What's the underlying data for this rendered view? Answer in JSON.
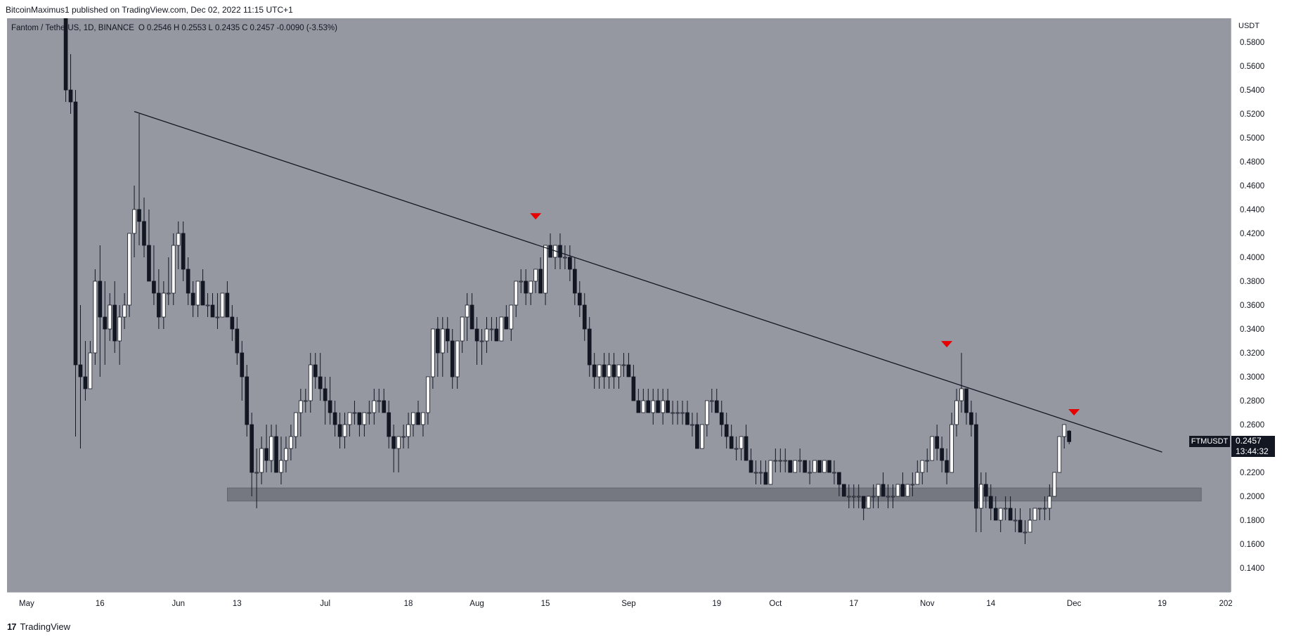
{
  "header": {
    "published_line": "BitcoinMaximus1 published on TradingView.com, Dec 02, 2022 11:15 UTC+1"
  },
  "legend": {
    "symbol": "Fantom / TetherUS, 1D, BINANCE",
    "open_label": "O",
    "open": "0.2546",
    "high_label": "H",
    "high": "0.2553",
    "low_label": "L",
    "low": "0.2435",
    "close_label": "C",
    "close": "0.2457",
    "change": "-0.0090 (-3.53%)"
  },
  "price_tag": {
    "symbol": "FTMUSDT",
    "price": "0.2457",
    "countdown": "13:44:32"
  },
  "footer": {
    "logo_text": "17",
    "brand": "TradingView"
  },
  "colors": {
    "background": "#9598a1",
    "up_candle": "#ffffff",
    "down_candle": "#131722",
    "trendline": "#131722",
    "support_zone": "#6b6e76",
    "marker": "#e60000"
  },
  "chart_data": {
    "type": "candlestick",
    "y_axis_title": "USDT",
    "ylim": [
      0.12,
      0.6
    ],
    "y_ticks": [
      "0.1400",
      "0.1600",
      "0.1800",
      "0.2000",
      "0.2200",
      "0.2400",
      "0.2600",
      "0.2800",
      "0.3000",
      "0.3200",
      "0.3400",
      "0.3600",
      "0.3800",
      "0.4000",
      "0.4200",
      "0.4400",
      "0.4600",
      "0.4800",
      "0.5000",
      "0.5200",
      "0.5400",
      "0.5600",
      "0.5800"
    ],
    "x_ticks": [
      {
        "label": "May",
        "date": "2022-05-01"
      },
      {
        "label": "16",
        "date": "2022-05-16"
      },
      {
        "label": "Jun",
        "date": "2022-06-01"
      },
      {
        "label": "13",
        "date": "2022-06-13"
      },
      {
        "label": "Jul",
        "date": "2022-07-01"
      },
      {
        "label": "18",
        "date": "2022-07-18"
      },
      {
        "label": "Aug",
        "date": "2022-08-01"
      },
      {
        "label": "15",
        "date": "2022-08-15"
      },
      {
        "label": "Sep",
        "date": "2022-09-01"
      },
      {
        "label": "19",
        "date": "2022-09-19"
      },
      {
        "label": "Oct",
        "date": "2022-10-01"
      },
      {
        "label": "17",
        "date": "2022-10-17"
      },
      {
        "label": "Nov",
        "date": "2022-11-01"
      },
      {
        "label": "14",
        "date": "2022-11-14"
      },
      {
        "label": "Dec",
        "date": "2022-12-01"
      },
      {
        "label": "19",
        "date": "2022-12-19"
      },
      {
        "label": "202",
        "date": "2023-01-01"
      }
    ],
    "xlim": [
      "2022-04-27",
      "2023-01-02"
    ],
    "trendline": {
      "start": [
        "2022-05-23",
        0.522
      ],
      "end": [
        "2022-12-19",
        0.237
      ]
    },
    "support_zone": {
      "start": "2022-06-11",
      "end": "2022-12-27",
      "low": 0.196,
      "high": 0.207
    },
    "markers": [
      {
        "date": "2022-08-13",
        "price": 0.434
      },
      {
        "date": "2022-11-05",
        "price": 0.327
      },
      {
        "date": "2022-12-01",
        "price": 0.27
      }
    ],
    "candle_key": [
      "open",
      "high",
      "low",
      "close"
    ],
    "start_date": "2022-05-09",
    "candles": [
      [
        0.6,
        0.62,
        0.53,
        0.54
      ],
      [
        0.54,
        0.57,
        0.52,
        0.53
      ],
      [
        0.53,
        0.54,
        0.25,
        0.31
      ],
      [
        0.31,
        0.36,
        0.24,
        0.3
      ],
      [
        0.3,
        0.33,
        0.28,
        0.29
      ],
      [
        0.29,
        0.33,
        0.29,
        0.32
      ],
      [
        0.32,
        0.39,
        0.31,
        0.38
      ],
      [
        0.38,
        0.41,
        0.3,
        0.35
      ],
      [
        0.35,
        0.38,
        0.31,
        0.34
      ],
      [
        0.34,
        0.37,
        0.33,
        0.36
      ],
      [
        0.36,
        0.38,
        0.32,
        0.33
      ],
      [
        0.33,
        0.36,
        0.31,
        0.35
      ],
      [
        0.35,
        0.37,
        0.34,
        0.36
      ],
      [
        0.36,
        0.42,
        0.35,
        0.42
      ],
      [
        0.42,
        0.46,
        0.4,
        0.44
      ],
      [
        0.44,
        0.52,
        0.41,
        0.43
      ],
      [
        0.43,
        0.45,
        0.4,
        0.41
      ],
      [
        0.41,
        0.44,
        0.38,
        0.38
      ],
      [
        0.38,
        0.41,
        0.36,
        0.37
      ],
      [
        0.37,
        0.39,
        0.34,
        0.35
      ],
      [
        0.35,
        0.38,
        0.34,
        0.37
      ],
      [
        0.37,
        0.4,
        0.36,
        0.37
      ],
      [
        0.37,
        0.42,
        0.36,
        0.41
      ],
      [
        0.41,
        0.43,
        0.39,
        0.42
      ],
      [
        0.42,
        0.43,
        0.38,
        0.39
      ],
      [
        0.39,
        0.4,
        0.36,
        0.37
      ],
      [
        0.37,
        0.38,
        0.35,
        0.36
      ],
      [
        0.36,
        0.38,
        0.35,
        0.38
      ],
      [
        0.38,
        0.39,
        0.36,
        0.36
      ],
      [
        0.36,
        0.37,
        0.35,
        0.36
      ],
      [
        0.36,
        0.37,
        0.35,
        0.35
      ],
      [
        0.35,
        0.37,
        0.34,
        0.35
      ],
      [
        0.35,
        0.37,
        0.35,
        0.37
      ],
      [
        0.37,
        0.38,
        0.35,
        0.35
      ],
      [
        0.35,
        0.36,
        0.33,
        0.34
      ],
      [
        0.34,
        0.35,
        0.31,
        0.32
      ],
      [
        0.32,
        0.33,
        0.28,
        0.3
      ],
      [
        0.3,
        0.31,
        0.25,
        0.26
      ],
      [
        0.26,
        0.27,
        0.2,
        0.22
      ],
      [
        0.22,
        0.24,
        0.19,
        0.22
      ],
      [
        0.22,
        0.25,
        0.21,
        0.24
      ],
      [
        0.24,
        0.26,
        0.22,
        0.23
      ],
      [
        0.23,
        0.26,
        0.22,
        0.25
      ],
      [
        0.25,
        0.26,
        0.22,
        0.22
      ],
      [
        0.22,
        0.25,
        0.21,
        0.23
      ],
      [
        0.23,
        0.25,
        0.22,
        0.24
      ],
      [
        0.24,
        0.26,
        0.23,
        0.25
      ],
      [
        0.25,
        0.27,
        0.24,
        0.27
      ],
      [
        0.27,
        0.29,
        0.25,
        0.28
      ],
      [
        0.28,
        0.29,
        0.27,
        0.28
      ],
      [
        0.28,
        0.32,
        0.27,
        0.31
      ],
      [
        0.31,
        0.32,
        0.29,
        0.3
      ],
      [
        0.3,
        0.32,
        0.28,
        0.29
      ],
      [
        0.29,
        0.3,
        0.26,
        0.28
      ],
      [
        0.28,
        0.3,
        0.26,
        0.27
      ],
      [
        0.27,
        0.28,
        0.25,
        0.26
      ],
      [
        0.26,
        0.27,
        0.24,
        0.25
      ],
      [
        0.25,
        0.27,
        0.24,
        0.26
      ],
      [
        0.26,
        0.27,
        0.25,
        0.27
      ],
      [
        0.27,
        0.28,
        0.26,
        0.27
      ],
      [
        0.27,
        0.27,
        0.25,
        0.26
      ],
      [
        0.26,
        0.27,
        0.25,
        0.27
      ],
      [
        0.27,
        0.28,
        0.26,
        0.27
      ],
      [
        0.27,
        0.29,
        0.26,
        0.28
      ],
      [
        0.28,
        0.29,
        0.27,
        0.28
      ],
      [
        0.28,
        0.29,
        0.27,
        0.27
      ],
      [
        0.27,
        0.28,
        0.24,
        0.25
      ],
      [
        0.25,
        0.26,
        0.22,
        0.24
      ],
      [
        0.24,
        0.25,
        0.22,
        0.25
      ],
      [
        0.25,
        0.26,
        0.24,
        0.25
      ],
      [
        0.25,
        0.27,
        0.24,
        0.26
      ],
      [
        0.26,
        0.27,
        0.25,
        0.27
      ],
      [
        0.27,
        0.28,
        0.26,
        0.26
      ],
      [
        0.26,
        0.27,
        0.25,
        0.27
      ],
      [
        0.27,
        0.3,
        0.26,
        0.3
      ],
      [
        0.3,
        0.34,
        0.29,
        0.34
      ],
      [
        0.34,
        0.35,
        0.3,
        0.32
      ],
      [
        0.32,
        0.35,
        0.3,
        0.34
      ],
      [
        0.34,
        0.35,
        0.32,
        0.33
      ],
      [
        0.33,
        0.34,
        0.29,
        0.3
      ],
      [
        0.3,
        0.33,
        0.29,
        0.33
      ],
      [
        0.33,
        0.35,
        0.32,
        0.35
      ],
      [
        0.35,
        0.37,
        0.33,
        0.36
      ],
      [
        0.36,
        0.37,
        0.34,
        0.34
      ],
      [
        0.34,
        0.35,
        0.31,
        0.33
      ],
      [
        0.33,
        0.34,
        0.31,
        0.33
      ],
      [
        0.33,
        0.35,
        0.32,
        0.34
      ],
      [
        0.34,
        0.35,
        0.33,
        0.34
      ],
      [
        0.34,
        0.35,
        0.33,
        0.33
      ],
      [
        0.33,
        0.35,
        0.33,
        0.35
      ],
      [
        0.35,
        0.36,
        0.34,
        0.34
      ],
      [
        0.34,
        0.36,
        0.33,
        0.36
      ],
      [
        0.36,
        0.38,
        0.35,
        0.38
      ],
      [
        0.38,
        0.39,
        0.37,
        0.38
      ],
      [
        0.38,
        0.39,
        0.36,
        0.37
      ],
      [
        0.37,
        0.38,
        0.36,
        0.38
      ],
      [
        0.38,
        0.39,
        0.37,
        0.39
      ],
      [
        0.39,
        0.4,
        0.37,
        0.37
      ],
      [
        0.37,
        0.41,
        0.36,
        0.41
      ],
      [
        0.41,
        0.42,
        0.4,
        0.4
      ],
      [
        0.4,
        0.41,
        0.39,
        0.41
      ],
      [
        0.41,
        0.42,
        0.39,
        0.4
      ],
      [
        0.4,
        0.41,
        0.39,
        0.4
      ],
      [
        0.4,
        0.41,
        0.38,
        0.39
      ],
      [
        0.39,
        0.4,
        0.36,
        0.37
      ],
      [
        0.37,
        0.38,
        0.35,
        0.36
      ],
      [
        0.36,
        0.37,
        0.33,
        0.34
      ],
      [
        0.34,
        0.35,
        0.3,
        0.31
      ],
      [
        0.31,
        0.32,
        0.29,
        0.3
      ],
      [
        0.3,
        0.31,
        0.29,
        0.31
      ],
      [
        0.31,
        0.32,
        0.29,
        0.3
      ],
      [
        0.3,
        0.32,
        0.29,
        0.31
      ],
      [
        0.31,
        0.32,
        0.29,
        0.3
      ],
      [
        0.3,
        0.31,
        0.29,
        0.31
      ],
      [
        0.31,
        0.32,
        0.3,
        0.31
      ],
      [
        0.31,
        0.32,
        0.3,
        0.3
      ],
      [
        0.3,
        0.31,
        0.28,
        0.28
      ],
      [
        0.28,
        0.29,
        0.27,
        0.27
      ],
      [
        0.27,
        0.29,
        0.27,
        0.28
      ],
      [
        0.28,
        0.29,
        0.27,
        0.27
      ],
      [
        0.27,
        0.29,
        0.26,
        0.28
      ],
      [
        0.28,
        0.29,
        0.27,
        0.27
      ],
      [
        0.27,
        0.29,
        0.26,
        0.28
      ],
      [
        0.28,
        0.29,
        0.27,
        0.27
      ],
      [
        0.27,
        0.28,
        0.26,
        0.27
      ],
      [
        0.27,
        0.28,
        0.26,
        0.27
      ],
      [
        0.27,
        0.28,
        0.26,
        0.27
      ],
      [
        0.27,
        0.28,
        0.26,
        0.26
      ],
      [
        0.26,
        0.27,
        0.25,
        0.26
      ],
      [
        0.26,
        0.27,
        0.24,
        0.24
      ],
      [
        0.24,
        0.26,
        0.24,
        0.26
      ],
      [
        0.26,
        0.28,
        0.25,
        0.28
      ],
      [
        0.28,
        0.29,
        0.27,
        0.28
      ],
      [
        0.28,
        0.29,
        0.27,
        0.27
      ],
      [
        0.27,
        0.28,
        0.25,
        0.26
      ],
      [
        0.26,
        0.27,
        0.24,
        0.25
      ],
      [
        0.25,
        0.26,
        0.24,
        0.24
      ],
      [
        0.24,
        0.25,
        0.23,
        0.24
      ],
      [
        0.24,
        0.25,
        0.23,
        0.25
      ],
      [
        0.25,
        0.26,
        0.23,
        0.23
      ],
      [
        0.23,
        0.24,
        0.22,
        0.22
      ],
      [
        0.22,
        0.23,
        0.21,
        0.22
      ],
      [
        0.22,
        0.23,
        0.21,
        0.22
      ],
      [
        0.22,
        0.23,
        0.21,
        0.21
      ],
      [
        0.21,
        0.23,
        0.21,
        0.23
      ],
      [
        0.23,
        0.24,
        0.22,
        0.23
      ],
      [
        0.23,
        0.24,
        0.22,
        0.23
      ],
      [
        0.23,
        0.24,
        0.22,
        0.23
      ],
      [
        0.23,
        0.23,
        0.22,
        0.22
      ],
      [
        0.22,
        0.23,
        0.22,
        0.23
      ],
      [
        0.23,
        0.24,
        0.22,
        0.23
      ],
      [
        0.23,
        0.23,
        0.22,
        0.22
      ],
      [
        0.22,
        0.23,
        0.21,
        0.22
      ],
      [
        0.22,
        0.23,
        0.22,
        0.23
      ],
      [
        0.23,
        0.23,
        0.22,
        0.22
      ],
      [
        0.22,
        0.23,
        0.22,
        0.23
      ],
      [
        0.23,
        0.23,
        0.22,
        0.22
      ],
      [
        0.22,
        0.23,
        0.21,
        0.22
      ],
      [
        0.22,
        0.22,
        0.2,
        0.21
      ],
      [
        0.21,
        0.21,
        0.2,
        0.2
      ],
      [
        0.2,
        0.21,
        0.19,
        0.2
      ],
      [
        0.2,
        0.21,
        0.19,
        0.2
      ],
      [
        0.2,
        0.21,
        0.19,
        0.2
      ],
      [
        0.2,
        0.2,
        0.18,
        0.19
      ],
      [
        0.19,
        0.2,
        0.19,
        0.2
      ],
      [
        0.2,
        0.21,
        0.19,
        0.2
      ],
      [
        0.2,
        0.21,
        0.19,
        0.21
      ],
      [
        0.21,
        0.22,
        0.2,
        0.2
      ],
      [
        0.2,
        0.21,
        0.19,
        0.2
      ],
      [
        0.2,
        0.21,
        0.19,
        0.2
      ],
      [
        0.2,
        0.21,
        0.2,
        0.21
      ],
      [
        0.21,
        0.22,
        0.2,
        0.2
      ],
      [
        0.2,
        0.21,
        0.2,
        0.21
      ],
      [
        0.21,
        0.22,
        0.2,
        0.21
      ],
      [
        0.21,
        0.23,
        0.21,
        0.22
      ],
      [
        0.22,
        0.23,
        0.21,
        0.23
      ],
      [
        0.23,
        0.24,
        0.22,
        0.23
      ],
      [
        0.23,
        0.25,
        0.23,
        0.25
      ],
      [
        0.25,
        0.26,
        0.23,
        0.24
      ],
      [
        0.24,
        0.25,
        0.22,
        0.23
      ],
      [
        0.23,
        0.24,
        0.21,
        0.22
      ],
      [
        0.22,
        0.27,
        0.22,
        0.26
      ],
      [
        0.26,
        0.29,
        0.25,
        0.28
      ],
      [
        0.28,
        0.32,
        0.27,
        0.29
      ],
      [
        0.29,
        0.29,
        0.26,
        0.27
      ],
      [
        0.27,
        0.28,
        0.25,
        0.26
      ],
      [
        0.26,
        0.27,
        0.17,
        0.19
      ],
      [
        0.19,
        0.22,
        0.17,
        0.21
      ],
      [
        0.21,
        0.22,
        0.19,
        0.2
      ],
      [
        0.2,
        0.21,
        0.18,
        0.19
      ],
      [
        0.19,
        0.2,
        0.18,
        0.18
      ],
      [
        0.18,
        0.19,
        0.17,
        0.19
      ],
      [
        0.19,
        0.2,
        0.18,
        0.19
      ],
      [
        0.19,
        0.2,
        0.18,
        0.18
      ],
      [
        0.18,
        0.19,
        0.17,
        0.18
      ],
      [
        0.18,
        0.19,
        0.17,
        0.17
      ],
      [
        0.17,
        0.18,
        0.16,
        0.17
      ],
      [
        0.17,
        0.19,
        0.17,
        0.18
      ],
      [
        0.18,
        0.19,
        0.18,
        0.19
      ],
      [
        0.19,
        0.19,
        0.18,
        0.19
      ],
      [
        0.19,
        0.2,
        0.18,
        0.19
      ],
      [
        0.19,
        0.21,
        0.18,
        0.2
      ],
      [
        0.2,
        0.22,
        0.2,
        0.22
      ],
      [
        0.22,
        0.25,
        0.22,
        0.25
      ],
      [
        0.25,
        0.26,
        0.24,
        0.26
      ],
      [
        0.2546,
        0.2553,
        0.2435,
        0.2457
      ]
    ]
  }
}
